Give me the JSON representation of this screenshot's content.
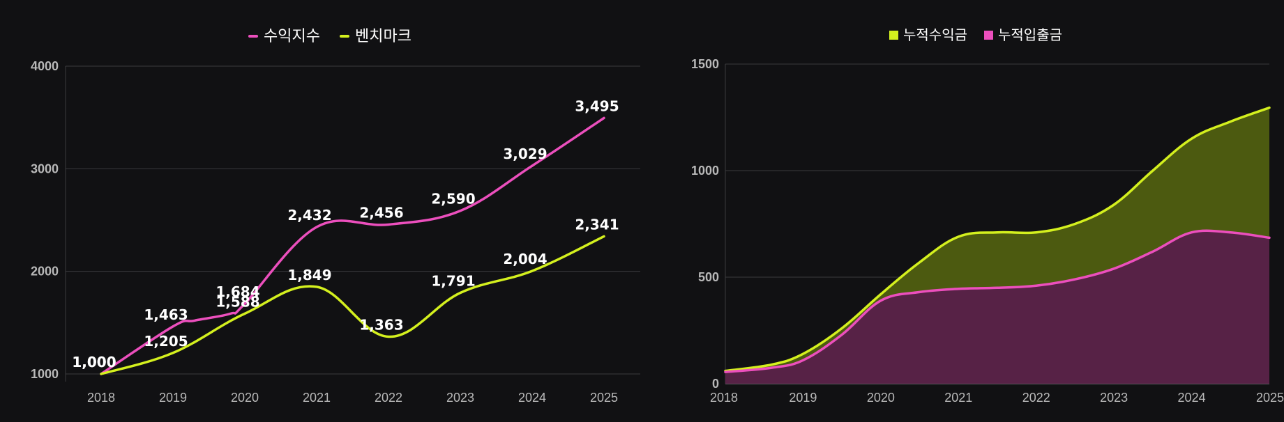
{
  "chart_data": [
    {
      "type": "line",
      "x": [
        "2018",
        "2019",
        "2019",
        "2020",
        "2020",
        "2021",
        "2022",
        "2023",
        "2024",
        "2025"
      ],
      "categories": [
        "2018",
        "2019",
        "2020",
        "2021",
        "2022",
        "2023",
        "2024",
        "2025"
      ],
      "ylim": [
        1000,
        4000
      ],
      "yticks": [
        "1000",
        "2000",
        "3000",
        "4000"
      ],
      "grid": true,
      "legend": "top",
      "series": [
        {
          "name": "수익지수",
          "color": "#ec4fbd",
          "points": [
            {
              "x": 2018.0,
              "y": 1000,
              "label": "1,000"
            },
            {
              "x": 2019.0,
              "y": 1463,
              "label": "1,463"
            },
            {
              "x": 2020.0,
              "y": 1684,
              "label": "1,684"
            },
            {
              "x": 2021.0,
              "y": 2432,
              "label": "2,432"
            },
            {
              "x": 2022.0,
              "y": 2456,
              "label": "2,456"
            },
            {
              "x": 2023.0,
              "y": 2590,
              "label": "2,590"
            },
            {
              "x": 2024.0,
              "y": 3029,
              "label": "3,029"
            },
            {
              "x": 2025.0,
              "y": 3495,
              "label": "3,495"
            }
          ],
          "extra_points": [
            {
              "x": 2019.3,
              "y": 1520
            },
            {
              "x": 2019.8,
              "y": 1588
            }
          ]
        },
        {
          "name": "벤치마크",
          "color": "#d4f01e",
          "points": [
            {
              "x": 2018.0,
              "y": 1000,
              "label": "1,000"
            },
            {
              "x": 2019.0,
              "y": 1205,
              "label": "1,205"
            },
            {
              "x": 2020.0,
              "y": 1588,
              "label": "1,588"
            },
            {
              "x": 2021.0,
              "y": 1849,
              "label": "1,849"
            },
            {
              "x": 2022.0,
              "y": 1363,
              "label": "1,363"
            },
            {
              "x": 2023.0,
              "y": 1791,
              "label": "1,791"
            },
            {
              "x": 2024.0,
              "y": 2004,
              "label": "2,004"
            },
            {
              "x": 2025.0,
              "y": 2341,
              "label": "2,341"
            }
          ]
        }
      ]
    },
    {
      "type": "area",
      "categories": [
        "2018",
        "2019",
        "2020",
        "2021",
        "2022",
        "2023",
        "2024",
        "2025"
      ],
      "ylim": [
        0,
        1500
      ],
      "yticks": [
        "0",
        "500",
        "1000",
        "1500"
      ],
      "grid": true,
      "legend": "top",
      "series": [
        {
          "name": "누적수익금",
          "color": "#d4f01e",
          "fill": "#4c5a10",
          "x": [
            2018.0,
            2018.6,
            2019.0,
            2019.5,
            2020.0,
            2020.5,
            2021.0,
            2021.5,
            2022.0,
            2022.5,
            2023.0,
            2023.5,
            2024.0,
            2024.5,
            2025.0
          ],
          "values": [
            60,
            90,
            140,
            260,
            420,
            570,
            690,
            710,
            710,
            750,
            840,
            1000,
            1150,
            1230,
            1295
          ]
        },
        {
          "name": "누적입출금",
          "color": "#ec4fbd",
          "fill": "#572246",
          "x": [
            2018.0,
            2018.6,
            2019.0,
            2019.5,
            2020.0,
            2020.5,
            2021.0,
            2021.5,
            2022.0,
            2022.5,
            2023.0,
            2023.5,
            2024.0,
            2024.5,
            2025.0
          ],
          "values": [
            55,
            75,
            110,
            230,
            390,
            430,
            445,
            450,
            460,
            490,
            540,
            620,
            710,
            710,
            685
          ]
        }
      ]
    }
  ]
}
